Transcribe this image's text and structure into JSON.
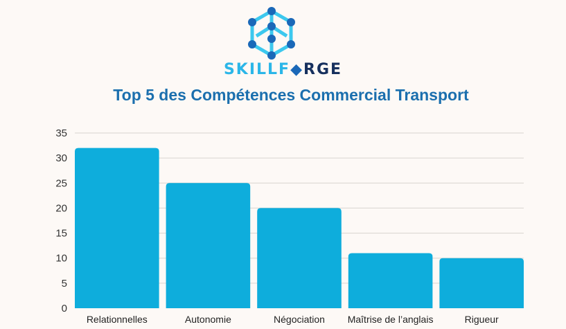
{
  "brand": {
    "part1": "SKILLF",
    "part2": "RGE",
    "full": "SKILLFORGE"
  },
  "colors": {
    "bar": "#0eaddc",
    "title": "#1b6fae",
    "grid": "#d8d4cf"
  },
  "chart_data": {
    "type": "bar",
    "title": "Top 5 des Compétences Commercial Transport",
    "xlabel": "",
    "ylabel": "",
    "categories": [
      "Relationnelles",
      "Autonomie",
      "Négociation",
      "Maîtrise de l’anglais",
      "Rigueur"
    ],
    "values": [
      32,
      25,
      20,
      11,
      10
    ],
    "ylim": [
      0,
      35
    ],
    "yticks": [
      0,
      5,
      10,
      15,
      20,
      25,
      30,
      35
    ],
    "grid": true
  }
}
